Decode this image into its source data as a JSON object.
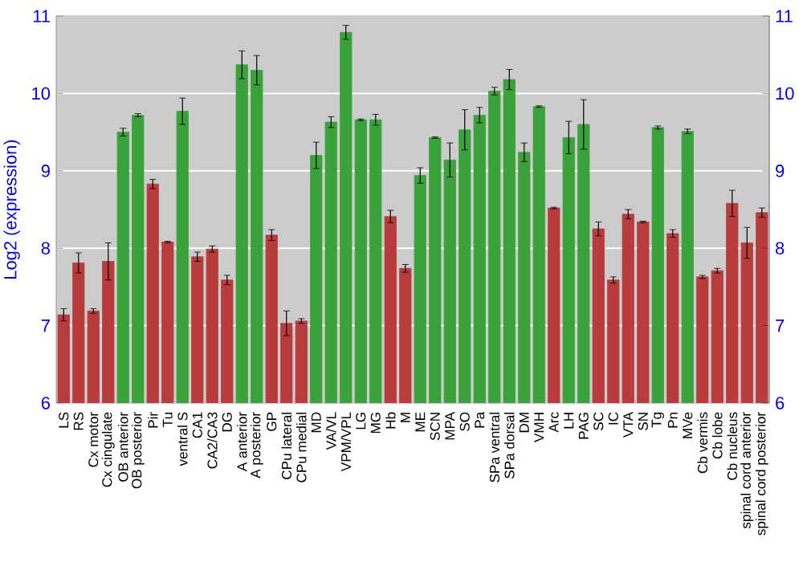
{
  "chart_data": {
    "type": "bar",
    "ylabel": "Log2 (expression)",
    "categories": [
      "LS",
      "RS",
      "Cx motor",
      "Cx cingulate",
      "OB anterior",
      "OB posterior",
      "Pir",
      "Tu",
      "ventral S",
      "CA1",
      "CA2/CA3",
      "DG",
      "A anterior",
      "A posterior",
      "GP",
      "CPu lateral",
      "CPu medial",
      "MD",
      "VA/VL",
      "VPM/VPL",
      "LG",
      "MG",
      "Hb",
      "M",
      "ME",
      "SCN",
      "MPA",
      "SO",
      "Pa",
      "SPa ventral",
      "SPa dorsal",
      "DM",
      "VMH",
      "Arc",
      "LH",
      "PAG",
      "SC",
      "IC",
      "VTA",
      "SN",
      "Tg",
      "Pn",
      "MVe",
      "Cb vermis",
      "Cb lobe",
      "Cb nucleus",
      "spinal cord anterior",
      "spinal cord posterior"
    ],
    "values": [
      7.14,
      7.81,
      7.19,
      7.83,
      9.5,
      9.72,
      8.83,
      8.08,
      9.77,
      7.89,
      7.99,
      7.59,
      10.37,
      10.3,
      8.17,
      7.03,
      7.06,
      9.2,
      9.63,
      10.79,
      9.66,
      9.66,
      8.41,
      7.74,
      8.94,
      9.43,
      9.14,
      9.53,
      9.72,
      10.03,
      10.18,
      9.24,
      9.83,
      8.52,
      9.43,
      9.6,
      8.25,
      7.59,
      8.44,
      8.34,
      9.56,
      8.19,
      9.51,
      7.63,
      7.71,
      8.58,
      8.07,
      8.46
    ],
    "errors": [
      0.08,
      0.13,
      0.03,
      0.24,
      0.05,
      0.02,
      0.06,
      0.01,
      0.17,
      0.06,
      0.04,
      0.06,
      0.18,
      0.19,
      0.07,
      0.16,
      0.03,
      0.17,
      0.07,
      0.09,
      0.01,
      0.07,
      0.08,
      0.05,
      0.1,
      0.01,
      0.22,
      0.26,
      0.1,
      0.05,
      0.13,
      0.12,
      0.01,
      0.01,
      0.21,
      0.32,
      0.09,
      0.04,
      0.06,
      0.01,
      0.02,
      0.05,
      0.03,
      0.02,
      0.03,
      0.17,
      0.2,
      0.06
    ],
    "colors": [
      "#b83c3c",
      "#b83c3c",
      "#b83c3c",
      "#b83c3c",
      "#3aa23a",
      "#3aa23a",
      "#b83c3c",
      "#b83c3c",
      "#3aa23a",
      "#b83c3c",
      "#b83c3c",
      "#b83c3c",
      "#3aa23a",
      "#3aa23a",
      "#b83c3c",
      "#b83c3c",
      "#b83c3c",
      "#3aa23a",
      "#3aa23a",
      "#3aa23a",
      "#3aa23a",
      "#3aa23a",
      "#b83c3c",
      "#b83c3c",
      "#3aa23a",
      "#3aa23a",
      "#3aa23a",
      "#3aa23a",
      "#3aa23a",
      "#3aa23a",
      "#3aa23a",
      "#3aa23a",
      "#3aa23a",
      "#b83c3c",
      "#3aa23a",
      "#3aa23a",
      "#b83c3c",
      "#b83c3c",
      "#b83c3c",
      "#b83c3c",
      "#3aa23a",
      "#b83c3c",
      "#3aa23a",
      "#b83c3c",
      "#b83c3c",
      "#b83c3c",
      "#b83c3c",
      "#b83c3c"
    ],
    "ylim": [
      6,
      11
    ],
    "yticks": [
      6,
      7,
      8,
      9,
      10,
      11
    ],
    "y2lim": [
      6,
      11
    ],
    "y2ticks": [
      6,
      7,
      8,
      9,
      10,
      11
    ],
    "grid": "y"
  }
}
